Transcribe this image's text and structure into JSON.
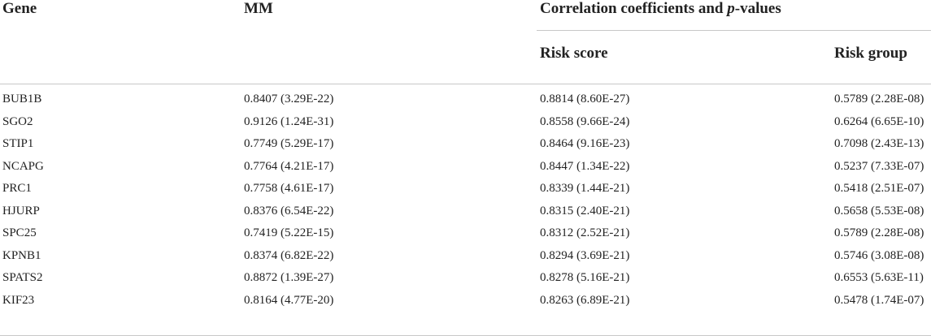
{
  "table": {
    "headers": {
      "gene": "Gene",
      "mm": "MM",
      "corr_prefix": "Correlation coefficients and ",
      "corr_italic": "p",
      "corr_suffix": "-values",
      "risk_score": "Risk score",
      "risk_group": "Risk group"
    },
    "rows": [
      {
        "gene": "BUB1B",
        "mm": "0.8407 (3.29E-22)",
        "risk_score": "0.8814 (8.60E-27)",
        "risk_group": "0.5789 (2.28E-08)"
      },
      {
        "gene": "SGO2",
        "mm": "0.9126 (1.24E-31)",
        "risk_score": "0.8558 (9.66E-24)",
        "risk_group": "0.6264 (6.65E-10)"
      },
      {
        "gene": "STIP1",
        "mm": "0.7749 (5.29E-17)",
        "risk_score": "0.8464 (9.16E-23)",
        "risk_group": "0.7098 (2.43E-13)"
      },
      {
        "gene": "NCAPG",
        "mm": "0.7764 (4.21E-17)",
        "risk_score": "0.8447 (1.34E-22)",
        "risk_group": "0.5237 (7.33E-07)"
      },
      {
        "gene": "PRC1",
        "mm": "0.7758 (4.61E-17)",
        "risk_score": "0.8339 (1.44E-21)",
        "risk_group": "0.5418 (2.51E-07)"
      },
      {
        "gene": "HJURP",
        "mm": "0.8376 (6.54E-22)",
        "risk_score": "0.8315 (2.40E-21)",
        "risk_group": "0.5658 (5.53E-08)"
      },
      {
        "gene": "SPC25",
        "mm": "0.7419 (5.22E-15)",
        "risk_score": "0.8312 (2.52E-21)",
        "risk_group": "0.5789 (2.28E-08)"
      },
      {
        "gene": "KPNB1",
        "mm": "0.8374 (6.82E-22)",
        "risk_score": "0.8294 (3.69E-21)",
        "risk_group": "0.5746 (3.08E-08)"
      },
      {
        "gene": "SPATS2",
        "mm": "0.8872 (1.39E-27)",
        "risk_score": "0.8278 (5.16E-21)",
        "risk_group": "0.6553 (5.63E-11)"
      },
      {
        "gene": "KIF23",
        "mm": "0.8164 (4.77E-20)",
        "risk_score": "0.8263 (6.89E-21)",
        "risk_group": "0.5478 (1.74E-07)"
      }
    ]
  }
}
